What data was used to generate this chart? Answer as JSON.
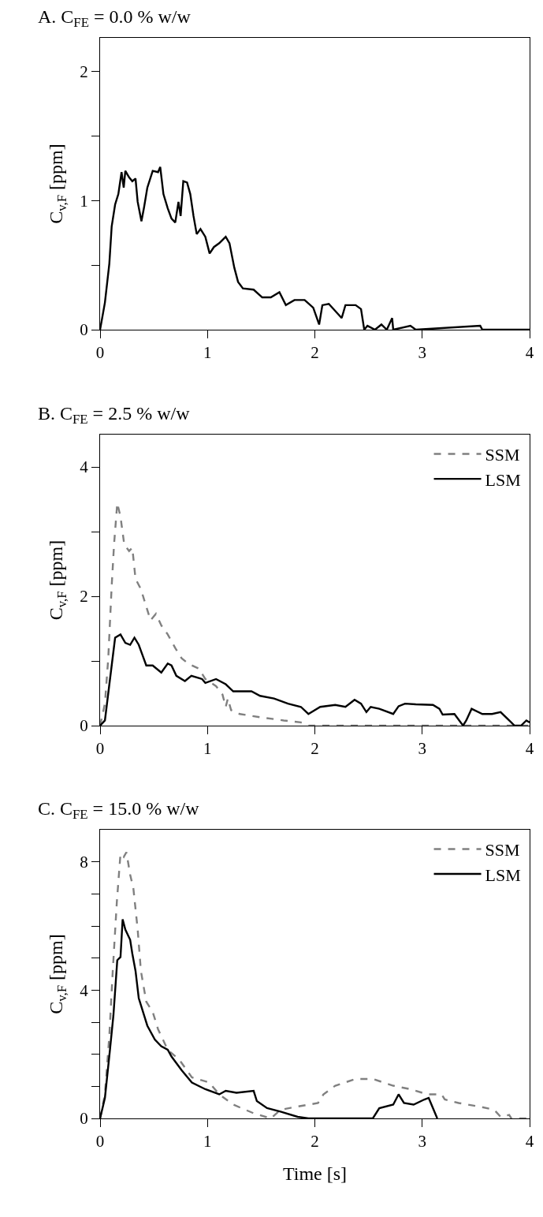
{
  "chart_data": [
    {
      "type": "line",
      "title": "A. C$_{FE}$ = 0.0 % w/w",
      "ylabel": "C$_{v,F}$ [ppm]",
      "xlim": [
        0,
        4
      ],
      "xticks": [
        0,
        1,
        2,
        3,
        4
      ],
      "ylim": [
        0,
        2.26
      ],
      "yticks": [
        0,
        {
          "value": 0.5,
          "label": null
        },
        1,
        {
          "value": 1.5,
          "label": null
        },
        2
      ],
      "grid": false,
      "legend": false,
      "series": [
        {
          "color": "#000000",
          "line_style": "solid",
          "x": [
            0,
            0.045,
            0.086,
            0.108,
            0.14,
            0.17,
            0.2,
            0.22,
            0.235,
            0.27,
            0.3,
            0.33,
            0.35,
            0.385,
            0.41,
            0.44,
            0.49,
            0.54,
            0.56,
            0.59,
            0.63,
            0.665,
            0.7,
            0.73,
            0.75,
            0.775,
            0.81,
            0.84,
            0.87,
            0.9,
            0.935,
            0.98,
            1.02,
            1.06,
            1.11,
            1.17,
            1.205,
            1.25,
            1.285,
            1.33,
            1.43,
            1.51,
            1.59,
            1.67,
            1.73,
            1.81,
            1.905,
            1.985,
            2.04,
            2.07,
            2.13,
            2.25,
            2.285,
            2.38,
            2.43,
            2.46,
            2.49,
            2.56,
            2.62,
            2.67,
            2.72,
            2.73,
            2.89,
            2.94,
            3.54,
            3.56,
            4
          ],
          "values": [
            0,
            0.21,
            0.51,
            0.8,
            0.97,
            1.05,
            1.22,
            1.1,
            1.23,
            1.18,
            1.15,
            1.17,
            0.99,
            0.84,
            0.95,
            1.1,
            1.23,
            1.22,
            1.26,
            1.05,
            0.94,
            0.86,
            0.83,
            0.99,
            0.88,
            1.15,
            1.14,
            1.05,
            0.88,
            0.74,
            0.78,
            0.72,
            0.59,
            0.64,
            0.67,
            0.72,
            0.67,
            0.48,
            0.37,
            0.32,
            0.31,
            0.25,
            0.25,
            0.29,
            0.19,
            0.23,
            0.23,
            0.17,
            0.04,
            0.19,
            0.2,
            0.09,
            0.19,
            0.19,
            0.16,
            0,
            0.03,
            0,
            0.04,
            0,
            0.09,
            0,
            0.03,
            0,
            0.03,
            0,
            0
          ]
        }
      ]
    },
    {
      "type": "line",
      "title": "B. C$_{FE}$ = 2.5 % w/w",
      "ylabel": "C$_{v,F}$ [ppm]",
      "xlim": [
        0,
        4
      ],
      "xticks": [
        0,
        1,
        2,
        3,
        4
      ],
      "ylim": [
        0,
        4.5
      ],
      "yticks": [
        0,
        {
          "value": 1,
          "label": null
        },
        2,
        {
          "value": 3,
          "label": null
        },
        4
      ],
      "grid": false,
      "legend": "top right",
      "series": [
        {
          "name": "SSM",
          "color": "#808080",
          "line_style": "dashed",
          "x": [
            0,
            0.045,
            0.076,
            0.108,
            0.13,
            0.16,
            0.19,
            0.225,
            0.27,
            0.3,
            0.33,
            0.38,
            0.43,
            0.47,
            0.52,
            0.57,
            0.63,
            0.7,
            0.76,
            0.82,
            0.92,
            0.98,
            1.08,
            1.14,
            1.17,
            1.19,
            1.22,
            1.3,
            1.49,
            1.71,
            1.87,
            1.94,
            2.25,
            4
          ],
          "values": [
            0,
            0.34,
            1.04,
            2.16,
            2.8,
            3.44,
            3.23,
            2.8,
            2.7,
            2.75,
            2.27,
            2.11,
            1.84,
            1.63,
            1.73,
            1.55,
            1.41,
            1.2,
            1.04,
            0.96,
            0.88,
            0.72,
            0.61,
            0.48,
            0.29,
            0.42,
            0.24,
            0.18,
            0.13,
            0.08,
            0.05,
            0,
            0,
            0
          ]
        },
        {
          "name": "LSM",
          "color": "#000000",
          "line_style": "solid",
          "x": [
            0,
            0.045,
            0.076,
            0.108,
            0.14,
            0.19,
            0.235,
            0.28,
            0.32,
            0.36,
            0.395,
            0.43,
            0.49,
            0.57,
            0.63,
            0.665,
            0.71,
            0.79,
            0.85,
            0.95,
            0.98,
            1.08,
            1.17,
            1.24,
            1.41,
            1.49,
            1.62,
            1.75,
            1.87,
            1.94,
            2.05,
            2.19,
            2.285,
            2.37,
            2.43,
            2.48,
            2.52,
            2.6,
            2.73,
            2.78,
            2.84,
            2.94,
            3.1,
            3.16,
            3.19,
            3.3,
            3.38,
            3.41,
            3.46,
            3.56,
            3.65,
            3.73,
            3.81,
            3.86,
            3.92,
            3.97,
            4
          ],
          "values": [
            0,
            0.08,
            0.5,
            0.93,
            1.36,
            1.41,
            1.28,
            1.25,
            1.36,
            1.25,
            1.09,
            0.93,
            0.93,
            0.82,
            0.96,
            0.93,
            0.77,
            0.69,
            0.77,
            0.72,
            0.66,
            0.72,
            0.64,
            0.53,
            0.53,
            0.46,
            0.42,
            0.34,
            0.29,
            0.18,
            0.29,
            0.32,
            0.29,
            0.4,
            0.34,
            0.21,
            0.29,
            0.26,
            0.18,
            0.3,
            0.34,
            0.33,
            0.32,
            0.26,
            0.17,
            0.18,
            0,
            0.08,
            0.26,
            0.18,
            0.18,
            0.21,
            0.08,
            0,
            0,
            0.08,
            0.05
          ]
        }
      ]
    },
    {
      "type": "line",
      "title": "C. C$_{FE}$ = 15.0 % w/w",
      "ylabel": "C$_{v,F}$ [ppm]",
      "xlabel": "Time [s]",
      "xlim": [
        0,
        4
      ],
      "xticks": [
        0,
        1,
        2,
        3,
        4
      ],
      "ylim": [
        0,
        9
      ],
      "yticks": [
        0,
        {
          "value": 1,
          "label": null
        },
        {
          "value": 2,
          "label": null
        },
        {
          "value": 3,
          "label": null
        },
        4,
        {
          "value": 5,
          "label": null
        },
        {
          "value": 6,
          "label": null
        },
        {
          "value": 7,
          "label": null
        },
        8
      ],
      "grid": false,
      "legend": "top right",
      "series": [
        {
          "name": "SSM",
          "color": "#808080",
          "line_style": "dashed",
          "x": [
            0,
            0.045,
            0.086,
            0.118,
            0.156,
            0.19,
            0.22,
            0.245,
            0.28,
            0.31,
            0.35,
            0.38,
            0.43,
            0.49,
            0.54,
            0.63,
            0.74,
            0.855,
            1.015,
            1.11,
            1.24,
            1.43,
            1.59,
            1.68,
            1.84,
            2.03,
            2.08,
            2.19,
            2.38,
            2.54,
            2.73,
            2.89,
            3.05,
            3.18,
            3.21,
            3.34,
            3.53,
            3.67,
            3.73,
            3.81,
            3.83,
            4
          ],
          "values": [
            0,
            0.75,
            2.57,
            4.6,
            6.75,
            8.25,
            8.15,
            8.3,
            7.6,
            7.17,
            5.89,
            4.6,
            3.64,
            3.32,
            2.78,
            2.14,
            1.82,
            1.28,
            1.12,
            0.75,
            0.43,
            0.16,
            0,
            0.27,
            0.37,
            0.48,
            0.75,
            1.02,
            1.23,
            1.23,
            1.02,
            0.91,
            0.75,
            0.75,
            0.59,
            0.48,
            0.37,
            0.27,
            0.05,
            0.11,
            0,
            0
          ]
        },
        {
          "name": "LSM",
          "color": "#000000",
          "line_style": "solid",
          "x": [
            0,
            0.045,
            0.092,
            0.124,
            0.16,
            0.19,
            0.21,
            0.235,
            0.28,
            0.3,
            0.33,
            0.36,
            0.41,
            0.44,
            0.51,
            0.57,
            0.63,
            0.665,
            0.76,
            0.855,
            0.98,
            1.11,
            1.17,
            1.27,
            1.43,
            1.46,
            1.555,
            1.68,
            1.84,
            1.94,
            2.1,
            2.54,
            2.6,
            2.73,
            2.78,
            2.83,
            2.92,
            3.02,
            3.06,
            3.1,
            3.14
          ],
          "values": [
            0,
            0.64,
            2.14,
            3.21,
            4.93,
            5.03,
            6.21,
            5.89,
            5.57,
            5.14,
            4.6,
            3.75,
            3.21,
            2.89,
            2.46,
            2.25,
            2.14,
            1.93,
            1.5,
            1.12,
            0.91,
            0.75,
            0.86,
            0.8,
            0.86,
            0.54,
            0.32,
            0.21,
            0.05,
            0,
            0,
            0,
            0.32,
            0.43,
            0.75,
            0.48,
            0.43,
            0.59,
            0.64,
            0.32,
            0
          ]
        }
      ]
    }
  ]
}
